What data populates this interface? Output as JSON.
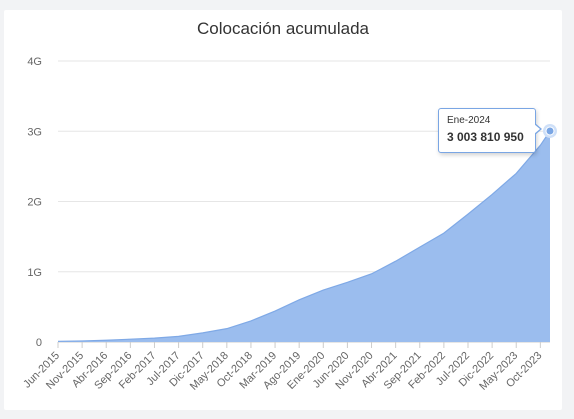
{
  "chart_data": {
    "type": "area",
    "title": "Colocación acumulada",
    "xlabel": "",
    "ylabel": "",
    "ylim": [
      0,
      4000000000
    ],
    "y_ticks": [
      {
        "value": 0,
        "label": "0"
      },
      {
        "value": 1000000000,
        "label": "1G"
      },
      {
        "value": 2000000000,
        "label": "2G"
      },
      {
        "value": 3000000000,
        "label": "3G"
      },
      {
        "value": 4000000000,
        "label": "4G"
      }
    ],
    "x_tick_labels": [
      "Jun-2015",
      "Nov-2015",
      "Abr-2016",
      "Sep-2016",
      "Feb-2017",
      "Jul-2017",
      "Dic-2017",
      "May-2018",
      "Oct-2018",
      "Mar-2019",
      "Ago-2019",
      "Ene-2020",
      "Jun-2020",
      "Nov-2020",
      "Abr-2021",
      "Sep-2021",
      "Feb-2022",
      "Jul-2022",
      "Dic-2022",
      "May-2023",
      "Oct-2023"
    ],
    "grid": true,
    "legend": false,
    "color": "#9bbdee",
    "series": [
      {
        "x_index": [
          0,
          5,
          10,
          15,
          20,
          25,
          30,
          35,
          40,
          45,
          50,
          55,
          60,
          65,
          70,
          75,
          80,
          85,
          90,
          95,
          100,
          102
        ],
        "values": [
          10000000,
          15000000,
          25000000,
          40000000,
          55000000,
          80000000,
          130000000,
          190000000,
          300000000,
          440000000,
          600000000,
          740000000,
          850000000,
          970000000,
          1150000000,
          1350000000,
          1550000000,
          1820000000,
          2100000000,
          2400000000,
          2800000000,
          3003810950
        ]
      }
    ],
    "tooltip": {
      "date": "Ene-2024",
      "value": "3 003 810 950"
    }
  }
}
